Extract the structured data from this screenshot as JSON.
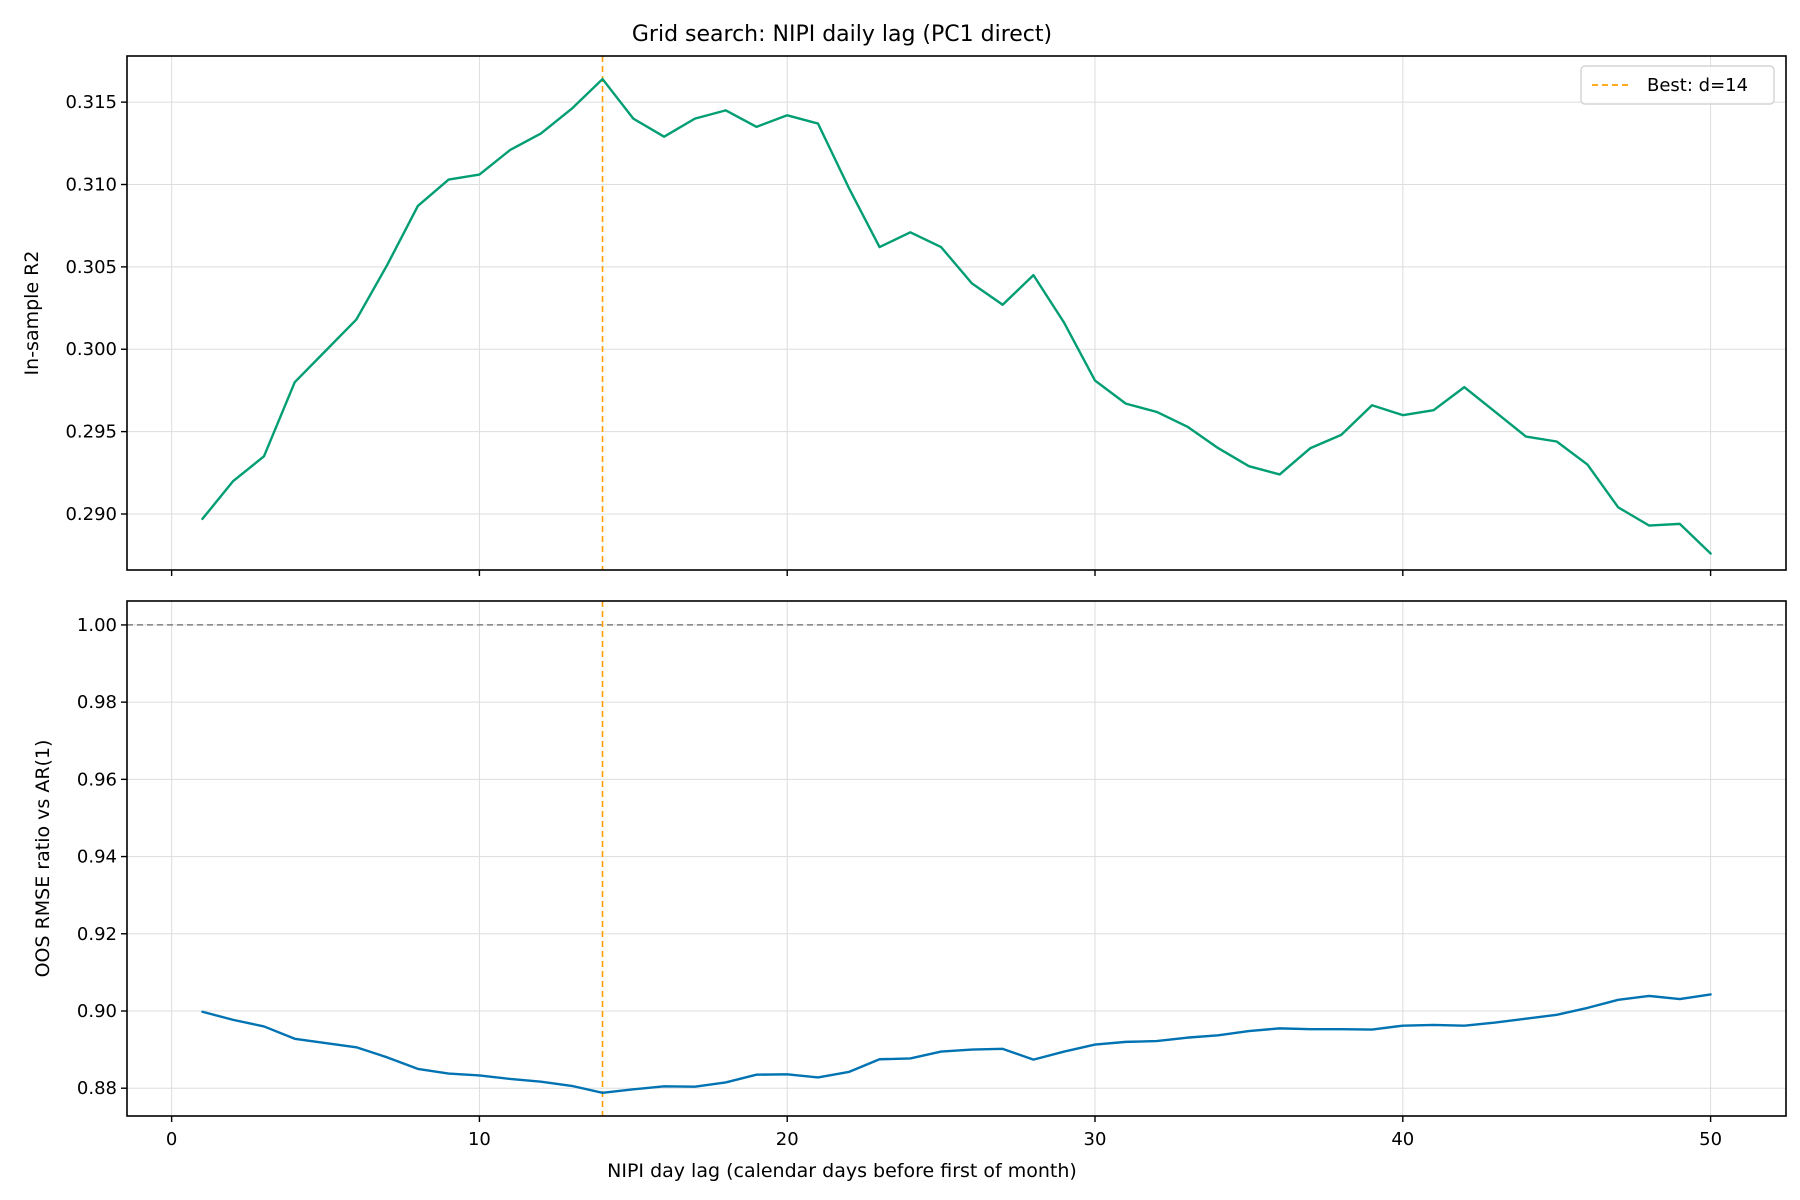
{
  "chart_data": {
    "title": "Grid search: NIPI daily lag (PC1 direct)",
    "xlabel": "NIPI day lag (calendar days before first of month)",
    "xlim": [
      -1.45,
      52.45
    ],
    "xticks": [
      0,
      10,
      20,
      30,
      40,
      50
    ],
    "x": [
      1,
      2,
      3,
      4,
      5,
      6,
      7,
      8,
      9,
      10,
      11,
      12,
      13,
      14,
      15,
      16,
      17,
      18,
      19,
      20,
      21,
      22,
      23,
      24,
      25,
      26,
      27,
      28,
      29,
      30,
      31,
      32,
      33,
      34,
      35,
      36,
      37,
      38,
      39,
      40,
      41,
      42,
      43,
      44,
      45,
      46,
      47,
      48,
      49,
      50
    ],
    "best_lag": 14,
    "legend": {
      "label": "Best: d=14",
      "placement": "upper right"
    },
    "panels": [
      {
        "type": "line",
        "ylabel": "In-sample R2",
        "ylim": [
          0.2866,
          0.3178
        ],
        "yticks": [
          0.29,
          0.295,
          0.3,
          0.305,
          0.31,
          0.315
        ],
        "ytick_labels": [
          "0.290",
          "0.295",
          "0.300",
          "0.305",
          "0.310",
          "0.315"
        ],
        "grid": true,
        "series": [
          {
            "color": "#029e73",
            "values": [
              0.2897,
              0.292,
              0.2935,
              0.298,
              0.2999,
              0.3018,
              0.3051,
              0.3087,
              0.3103,
              0.3106,
              0.3121,
              0.3131,
              0.3146,
              0.3164,
              0.314,
              0.3129,
              0.314,
              0.3145,
              0.3135,
              0.3142,
              0.3137,
              0.3098,
              0.3062,
              0.3071,
              0.3062,
              0.304,
              0.3027,
              0.3045,
              0.3016,
              0.2981,
              0.2967,
              0.2962,
              0.2953,
              0.294,
              0.2929,
              0.2924,
              0.294,
              0.2948,
              0.2966,
              0.296,
              0.2963,
              0.2977,
              0.2962,
              0.2947,
              0.2944,
              0.293,
              0.2904,
              0.2893,
              0.2894,
              0.2876
            ]
          }
        ]
      },
      {
        "type": "line",
        "ylabel": "OOS RMSE ratio vs AR(1)",
        "ylim": [
          0.8728,
          1.0062
        ],
        "yticks": [
          0.88,
          0.9,
          0.92,
          0.94,
          0.96,
          0.98,
          1.0
        ],
        "ytick_labels": [
          "0.88",
          "0.90",
          "0.92",
          "0.94",
          "0.96",
          "0.98",
          "1.00"
        ],
        "grid": true,
        "reference_line": 1.0,
        "series": [
          {
            "color": "#0173b2",
            "values": [
              0.8998,
              0.8977,
              0.896,
              0.8928,
              0.8917,
              0.8906,
              0.888,
              0.885,
              0.8838,
              0.8833,
              0.8824,
              0.8817,
              0.8806,
              0.8788,
              0.8797,
              0.8805,
              0.8804,
              0.8815,
              0.8835,
              0.8836,
              0.8828,
              0.8842,
              0.8875,
              0.8877,
              0.8895,
              0.89,
              0.8902,
              0.8874,
              0.8895,
              0.8913,
              0.892,
              0.8922,
              0.8931,
              0.8937,
              0.8948,
              0.8955,
              0.8953,
              0.8953,
              0.8952,
              0.8962,
              0.8964,
              0.8962,
              0.897,
              0.898,
              0.899,
              0.9008,
              0.9029,
              0.9039,
              0.9031,
              0.9043
            ]
          }
        ]
      }
    ],
    "colors": {
      "best_line": "#ff9f00",
      "reference_line": "#808080"
    }
  }
}
